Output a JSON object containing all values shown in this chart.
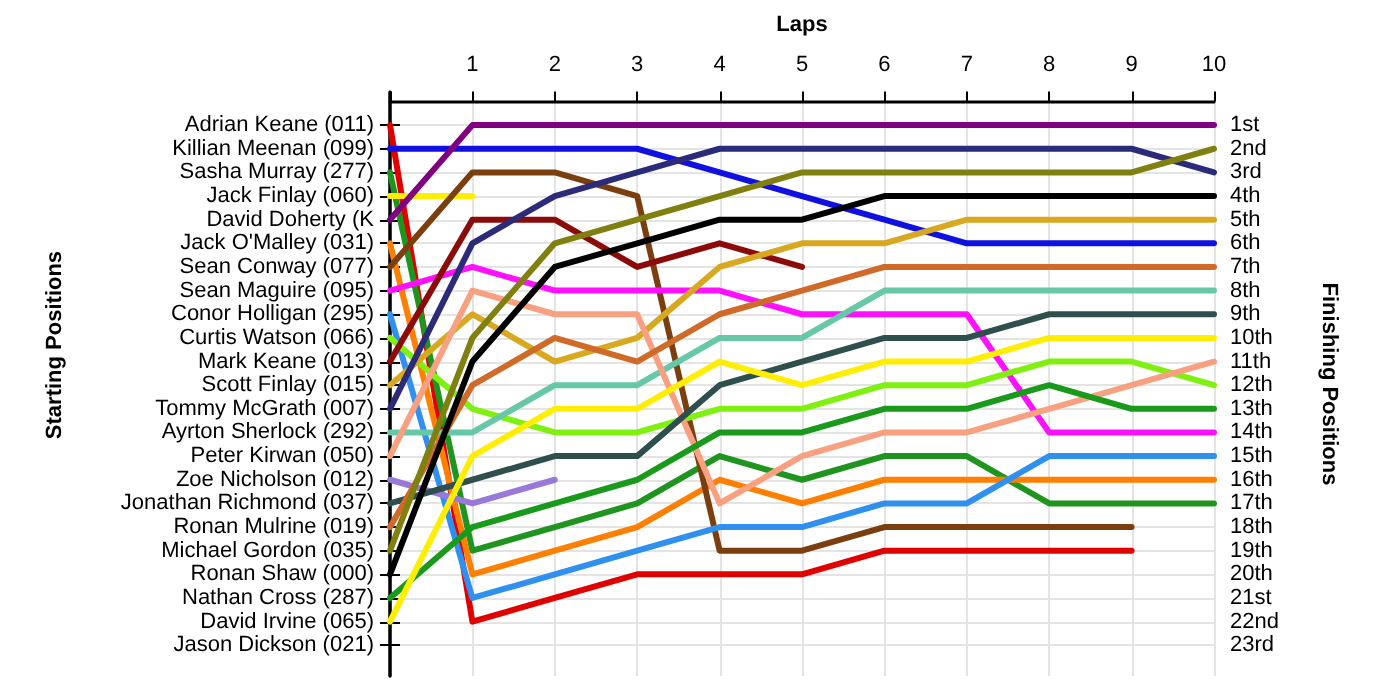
{
  "chart_data": {
    "type": "line",
    "xlabel": "Laps",
    "annotations": [
      "Starting Positions"
    ],
    "y2label": "Finishing Positions",
    "x": [
      0,
      1,
      2,
      3,
      4,
      5,
      6,
      7,
      8,
      9,
      10
    ],
    "xlim": [
      0,
      10
    ],
    "xticks": [
      {
        "value": 0,
        "label": null
      },
      1,
      2,
      3,
      4,
      5,
      6,
      7,
      8,
      9,
      10
    ],
    "y_categories": [
      "Adrian Keane (011)",
      "Killian Meenan (099)",
      "Sasha Murray (277)",
      "Jack Finlay (060)",
      "David Doherty (K",
      "Jack O'Malley (031)",
      "Sean Conway (077)",
      "Sean Maguire (095)",
      "Conor Holligan (295)",
      "Curtis Watson (066)",
      "Mark Keane (013)",
      "Scott Finlay (015)",
      "Tommy McGrath (007)",
      "Ayrton Sherlock (292)",
      "Peter Kirwan (050)",
      "Zoe Nicholson (012)",
      "Jonathan Richmond (037)",
      "Ronan Mulrine (019)",
      "Michael Gordon (035)",
      "Ronan Shaw (000)",
      "Nathan Cross (287)",
      "David Irvine (065)",
      "Jason Dickson (021)"
    ],
    "ylim": [
      24.3,
      -0.4
    ],
    "yticks": [
      {
        "value": 1,
        "label": "1st"
      },
      {
        "value": 2,
        "label": "2nd"
      },
      {
        "value": 3,
        "label": "3rd"
      },
      {
        "value": 4,
        "label": "4th"
      },
      {
        "value": 5,
        "label": "5th"
      },
      {
        "value": 6,
        "label": "6th"
      },
      {
        "value": 7,
        "label": "7th"
      },
      {
        "value": 8,
        "label": "8th"
      },
      {
        "value": 9,
        "label": "9th"
      },
      {
        "value": 10,
        "label": "10th"
      },
      {
        "value": 11,
        "label": "11th"
      },
      {
        "value": 12,
        "label": "12th"
      },
      {
        "value": 13,
        "label": "13th"
      },
      {
        "value": 14,
        "label": "14th"
      },
      {
        "value": 15,
        "label": "15th"
      },
      {
        "value": 16,
        "label": "16th"
      },
      {
        "value": 17,
        "label": "17th"
      },
      {
        "value": 18,
        "label": "18th"
      },
      {
        "value": 19,
        "label": "19th"
      },
      {
        "value": 20,
        "label": "20th"
      },
      {
        "value": 21,
        "label": "21st"
      },
      {
        "value": 22,
        "label": "22nd"
      },
      {
        "value": 23,
        "label": "23rd"
      }
    ],
    "grid": true,
    "marker": "none",
    "line_style": "solid",
    "series": [
      {
        "color": "#e00000",
        "values": [
          1,
          22,
          21,
          20,
          20,
          20,
          19,
          19,
          19,
          19,
          null
        ]
      },
      {
        "color": "#1010e0",
        "values": [
          2,
          2,
          2,
          2,
          3,
          4,
          5,
          6,
          6,
          6,
          6
        ]
      },
      {
        "color": "#1f951f",
        "values": [
          3,
          19,
          18,
          17,
          15,
          16,
          15,
          15,
          17,
          17,
          17
        ]
      },
      {
        "color": "#ffee00",
        "values": [
          4,
          4,
          null,
          null,
          null,
          null,
          null,
          null,
          null,
          null,
          null
        ]
      },
      {
        "color": "#800080",
        "values": [
          5,
          1,
          1,
          1,
          1,
          1,
          1,
          1,
          1,
          1,
          1
        ]
      },
      {
        "color": "#ff8000",
        "values": [
          6,
          20,
          19,
          18,
          16,
          17,
          16,
          16,
          16,
          16,
          16
        ]
      },
      {
        "color": "#7b3f0f",
        "values": [
          7,
          3,
          3,
          4,
          19,
          19,
          18,
          18,
          18,
          18,
          null
        ]
      },
      {
        "color": "#ff10ff",
        "values": [
          8,
          7,
          8,
          8,
          8,
          9,
          9,
          9,
          14,
          14,
          14
        ]
      },
      {
        "color": "#3090f0",
        "values": [
          9,
          21,
          20,
          19,
          18,
          18,
          17,
          17,
          15,
          15,
          15
        ]
      },
      {
        "color": "#80f010",
        "values": [
          10,
          13,
          14,
          14,
          13,
          13,
          12,
          12,
          11,
          11,
          12
        ]
      },
      {
        "color": "#8b0a0a",
        "values": [
          11,
          5,
          5,
          7,
          6,
          7,
          null,
          null,
          null,
          null,
          null
        ]
      },
      {
        "color": "#d8a820",
        "values": [
          12,
          9,
          11,
          10,
          7,
          6,
          6,
          5,
          5,
          5,
          5
        ]
      },
      {
        "color": "#2b2b7a",
        "values": [
          13,
          6,
          4,
          3,
          2,
          2,
          2,
          2,
          2,
          2,
          3
        ]
      },
      {
        "color": "#66c8a8",
        "values": [
          14,
          14,
          12,
          12,
          10,
          10,
          8,
          8,
          8,
          8,
          8
        ]
      },
      {
        "color": "#f8a080",
        "values": [
          15,
          8,
          9,
          9,
          17,
          15,
          14,
          14,
          13,
          12,
          11
        ]
      },
      {
        "color": "#9878d8",
        "values": [
          16,
          17,
          16,
          null,
          null,
          null,
          null,
          null,
          null,
          null,
          null
        ]
      },
      {
        "color": "#2f4f4f",
        "values": [
          17,
          16,
          15,
          15,
          12,
          11,
          10,
          10,
          9,
          9,
          9
        ]
      },
      {
        "color": "#d06a28",
        "values": [
          18,
          12,
          10,
          11,
          9,
          8,
          7,
          7,
          7,
          7,
          7
        ]
      },
      {
        "color": "#808010",
        "values": [
          19,
          10,
          6,
          5,
          4,
          3,
          3,
          3,
          3,
          3,
          2
        ]
      },
      {
        "color": "#000000",
        "values": [
          20,
          11,
          7,
          6,
          5,
          5,
          4,
          4,
          4,
          4,
          4
        ]
      },
      {
        "color": "#1a9a1a",
        "values": [
          21,
          18,
          17,
          16,
          14,
          14,
          13,
          13,
          12,
          13,
          13
        ]
      },
      {
        "color": "#ffee00",
        "values": [
          22,
          15,
          13,
          13,
          11,
          12,
          11,
          11,
          10,
          10,
          10
        ]
      }
    ]
  }
}
